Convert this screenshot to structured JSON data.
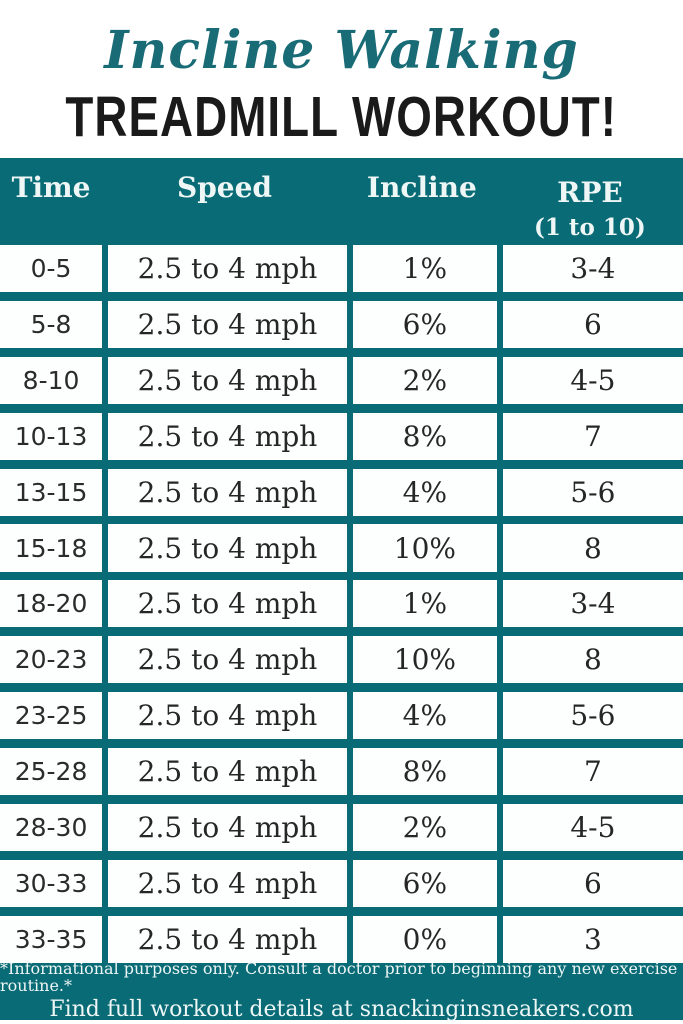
{
  "title": {
    "line1": "Incline Walking",
    "line2": "TREADMILL WORKOUT!"
  },
  "colors": {
    "teal_accent": "#086b75",
    "title_script": "#196b76",
    "title_black": "#1a1a1a",
    "header_text": "#eef6f6",
    "cell_background": "#fdfefe"
  },
  "table": {
    "headers": {
      "time": "Time",
      "speed": "Speed",
      "incline": "Incline",
      "rpe": "RPE",
      "rpe_sub": "(1 to 10)"
    },
    "rows": [
      {
        "time": "0-5",
        "speed": "2.5 to 4 mph",
        "incline": "1%",
        "rpe": "3-4"
      },
      {
        "time": "5-8",
        "speed": "2.5 to 4 mph",
        "incline": "6%",
        "rpe": "6"
      },
      {
        "time": "8-10",
        "speed": "2.5 to 4 mph",
        "incline": "2%",
        "rpe": "4-5"
      },
      {
        "time": "10-13",
        "speed": "2.5 to 4 mph",
        "incline": "8%",
        "rpe": "7"
      },
      {
        "time": "13-15",
        "speed": "2.5 to 4 mph",
        "incline": "4%",
        "rpe": "5-6"
      },
      {
        "time": "15-18",
        "speed": "2.5 to 4 mph",
        "incline": "10%",
        "rpe": "8"
      },
      {
        "time": "18-20",
        "speed": "2.5 to 4 mph",
        "incline": "1%",
        "rpe": "3-4"
      },
      {
        "time": "20-23",
        "speed": "2.5 to 4 mph",
        "incline": "10%",
        "rpe": "8"
      },
      {
        "time": "23-25",
        "speed": "2.5 to 4 mph",
        "incline": "4%",
        "rpe": "5-6"
      },
      {
        "time": "25-28",
        "speed": "2.5 to 4 mph",
        "incline": "8%",
        "rpe": "7"
      },
      {
        "time": "28-30",
        "speed": "2.5 to 4 mph",
        "incline": "2%",
        "rpe": "4-5"
      },
      {
        "time": "30-33",
        "speed": "2.5 to 4 mph",
        "incline": "6%",
        "rpe": "6"
      },
      {
        "time": "33-35",
        "speed": "2.5 to 4 mph",
        "incline": "0%",
        "rpe": "3"
      }
    ]
  },
  "footer": {
    "disclaimer": "*Informational purposes only. Consult a doctor prior to beginning any new exercise routine.*",
    "details": "Find full workout details at snackinginsneakers.com"
  },
  "chart_data": {
    "type": "table",
    "title": "Incline Walking Treadmill Workout!",
    "columns": [
      "Time",
      "Speed",
      "Incline",
      "RPE (1 to 10)"
    ],
    "rows": [
      [
        "0-5",
        "2.5 to 4 mph",
        "1%",
        "3-4"
      ],
      [
        "5-8",
        "2.5 to 4 mph",
        "6%",
        "6"
      ],
      [
        "8-10",
        "2.5 to 4 mph",
        "2%",
        "4-5"
      ],
      [
        "10-13",
        "2.5 to 4 mph",
        "8%",
        "7"
      ],
      [
        "13-15",
        "2.5 to 4 mph",
        "4%",
        "5-6"
      ],
      [
        "15-18",
        "2.5 to 4 mph",
        "10%",
        "8"
      ],
      [
        "18-20",
        "2.5 to 4 mph",
        "1%",
        "3-4"
      ],
      [
        "20-23",
        "2.5 to 4 mph",
        "10%",
        "8"
      ],
      [
        "23-25",
        "2.5 to 4 mph",
        "4%",
        "5-6"
      ],
      [
        "25-28",
        "2.5 to 4 mph",
        "8%",
        "7"
      ],
      [
        "28-30",
        "2.5 to 4 mph",
        "2%",
        "4-5"
      ],
      [
        "30-33",
        "2.5 to 4 mph",
        "6%",
        "6"
      ],
      [
        "33-35",
        "2.5 to 4 mph",
        "0%",
        "3"
      ]
    ]
  }
}
